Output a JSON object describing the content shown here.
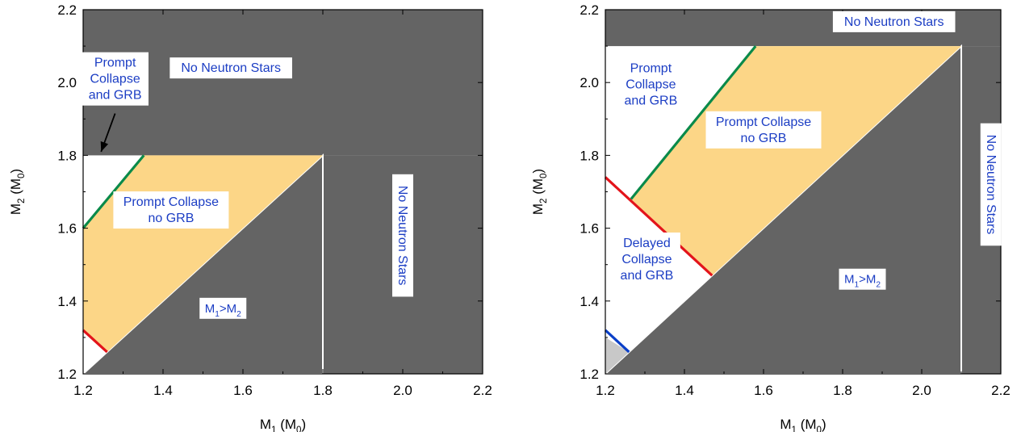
{
  "chart_data": [
    {
      "type": "area",
      "xlabel": {
        "main": "M",
        "sub": "1",
        "rest": " (M",
        "unit_sub": "0",
        "close": ")"
      },
      "ylabel": {
        "main": "M",
        "sub": "2",
        "rest": " (M",
        "unit_sub": "0",
        "close": ")"
      },
      "xlim": [
        1.2,
        2.2
      ],
      "ylim": [
        1.2,
        2.2
      ],
      "xticks": [
        "1.2",
        "1.4",
        "1.6",
        "1.8",
        "2.0",
        "2.2"
      ],
      "yticks": [
        "1.2",
        "1.4",
        "1.6",
        "1.8",
        "2.0",
        "2.2"
      ],
      "colors": {
        "gray": "#646464",
        "orange": "#fcd687",
        "green": "#0a8a4a",
        "red": "#e3141b",
        "blue": "#0a3fc8",
        "text": "#1c3ec4"
      },
      "regions": [
        {
          "kind": "no_ns_top",
          "x": [
            1.2,
            2.2
          ],
          "y": [
            1.8,
            2.2
          ]
        },
        {
          "kind": "no_ns_right",
          "x": [
            1.8,
            2.2
          ],
          "y": [
            1.2,
            1.8
          ]
        },
        {
          "kind": "lower_triangle",
          "points": [
            [
              1.2,
              1.2
            ],
            [
              1.8,
              1.8
            ],
            [
              1.8,
              1.2
            ]
          ]
        },
        {
          "kind": "prompt_no_grb",
          "points": [
            [
              1.2,
              1.32
            ],
            [
              1.2,
              1.6
            ],
            [
              1.352,
              1.8
            ],
            [
              1.8,
              1.8
            ],
            [
              1.26,
              1.26
            ]
          ]
        }
      ],
      "lines": [
        {
          "color": "green",
          "points": [
            [
              1.2,
              1.6
            ],
            [
              1.352,
              1.8
            ]
          ]
        },
        {
          "color": "red",
          "points": [
            [
              1.2,
              1.32
            ],
            [
              1.26,
              1.26
            ]
          ]
        }
      ],
      "labels": [
        {
          "text": "No Neutron Stars",
          "at": [
            1.57,
            2.04
          ]
        },
        {
          "text": "Prompt Collapse\nno GRB",
          "at": [
            1.42,
            1.65
          ]
        },
        {
          "text": "Prompt\nCollapse\nand GRB",
          "at": [
            1.28,
            2.01
          ]
        },
        {
          "text": "No Neutron Stars",
          "at": [
            2.0,
            1.58
          ],
          "rotate": 90
        }
      ],
      "m_label": {
        "at": [
          1.55,
          1.38
        ],
        "a": "M",
        "a_sub": "1",
        "op": ">",
        "b": "M",
        "b_sub": "2"
      },
      "arrow": {
        "from": [
          1.28,
          1.915
        ],
        "to": [
          1.245,
          1.81
        ]
      }
    },
    {
      "type": "area",
      "xlabel": {
        "main": "M",
        "sub": "1",
        "rest": " (M",
        "unit_sub": "0",
        "close": ")"
      },
      "ylabel": {
        "main": "M",
        "sub": "2",
        "rest": " (M",
        "unit_sub": "0",
        "close": ")"
      },
      "xlim": [
        1.2,
        2.2
      ],
      "ylim": [
        1.2,
        2.2
      ],
      "xticks": [
        "1.2",
        "1.4",
        "1.6",
        "1.8",
        "2.0",
        "2.2"
      ],
      "yticks": [
        "1.2",
        "1.4",
        "1.6",
        "1.8",
        "2.0",
        "2.2"
      ],
      "colors": {
        "gray": "#646464",
        "orange": "#fcd687",
        "green": "#0a8a4a",
        "red": "#e3141b",
        "blue": "#0a3fc8",
        "light": "#c8c8c8",
        "text": "#1c3ec4"
      },
      "regions": [
        {
          "kind": "no_ns_top",
          "x": [
            1.2,
            2.2
          ],
          "y": [
            2.1,
            2.2
          ]
        },
        {
          "kind": "no_ns_right",
          "x": [
            2.1,
            2.2
          ],
          "y": [
            1.2,
            2.1
          ]
        },
        {
          "kind": "lower_triangle",
          "points": [
            [
              1.2,
              1.2
            ],
            [
              2.1,
              2.1
            ],
            [
              2.1,
              1.2
            ]
          ]
        },
        {
          "kind": "prompt_no_grb",
          "points": [
            [
              1.265,
              1.68
            ],
            [
              1.58,
              2.1
            ],
            [
              2.1,
              2.1
            ],
            [
              1.47,
              1.47
            ]
          ]
        },
        {
          "kind": "light_triangle",
          "points": [
            [
              1.2,
              1.2
            ],
            [
              1.2,
              1.3
            ],
            [
              1.26,
              1.26
            ]
          ]
        }
      ],
      "lines": [
        {
          "color": "green",
          "points": [
            [
              1.265,
              1.68
            ],
            [
              1.58,
              2.1
            ]
          ]
        },
        {
          "color": "red",
          "points": [
            [
              1.2,
              1.74
            ],
            [
              1.47,
              1.47
            ]
          ]
        },
        {
          "color": "blue",
          "points": [
            [
              1.2,
              1.32
            ],
            [
              1.26,
              1.26
            ]
          ]
        }
      ],
      "labels": [
        {
          "text": "No Neutron Stars",
          "at": [
            1.93,
            2.167
          ]
        },
        {
          "text": "Prompt\nCollapse\nand GRB",
          "at": [
            1.315,
            1.995
          ]
        },
        {
          "text": "Prompt Collapse\nno GRB",
          "at": [
            1.6,
            1.87
          ]
        },
        {
          "text": "Delayed\nCollapse\nand GRB",
          "at": [
            1.305,
            1.515
          ]
        },
        {
          "text": "No Neutron Stars",
          "at": [
            2.175,
            1.72
          ],
          "rotate": 90
        }
      ],
      "m_label": {
        "at": [
          1.85,
          1.46
        ],
        "a": "M",
        "a_sub": "1",
        "op": ">",
        "b": "M",
        "b_sub": "2"
      }
    }
  ]
}
